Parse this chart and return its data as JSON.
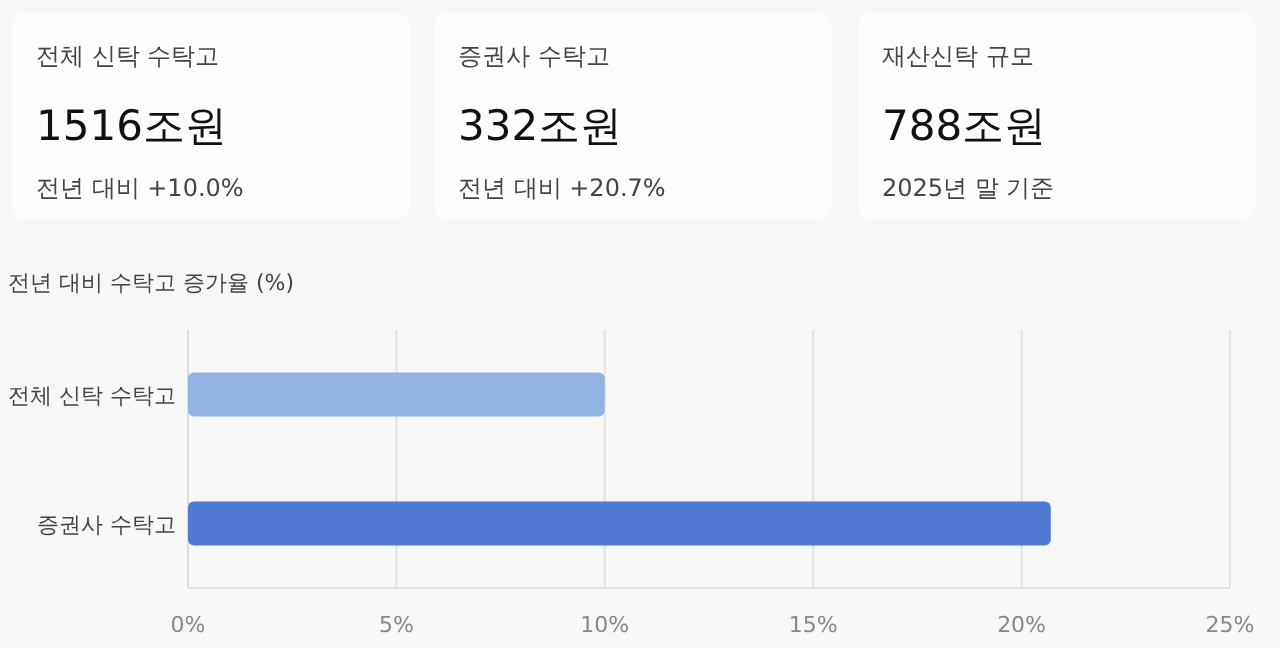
{
  "chart_data": [
    {
      "type": "other",
      "title": "전체 신탁 수탁고",
      "annotations": [
        "1516조원",
        "전년 대비 +10.0%"
      ]
    },
    {
      "type": "other",
      "title": "증권사 수탁고",
      "annotations": [
        "332조원",
        "전년 대비 +20.7%"
      ]
    },
    {
      "type": "other",
      "title": "재산신탁 규모",
      "annotations": [
        "788조원",
        "2025년 말 기준"
      ]
    },
    {
      "type": "bar",
      "orientation": "horizontal",
      "title": "전년 대비 수탁고 증가율 (%)",
      "categories": [
        "전체 신탁 수탁고",
        "증권사 수탁고"
      ],
      "values": [
        10.0,
        20.7
      ],
      "colors": [
        "#94b4e6",
        "#4f79d2"
      ],
      "xlim": [
        0,
        25
      ],
      "xticks": [
        {
          "value": 0,
          "label": "0%"
        },
        {
          "value": 5,
          "label": "5%"
        },
        {
          "value": 10,
          "label": "10%"
        },
        {
          "value": 15,
          "label": "15%"
        },
        {
          "value": 20,
          "label": "20%"
        },
        {
          "value": 25,
          "label": "25%"
        }
      ],
      "grid": "x"
    }
  ]
}
